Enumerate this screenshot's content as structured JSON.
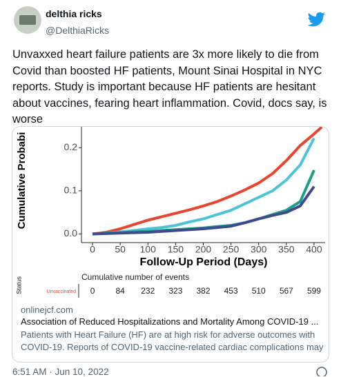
{
  "tweet": {
    "name": "delthia ricks",
    "handle": "@DelthiaRicks",
    "text": "Unvaxxed heart failure patients are 3x more likely to die from Covid than boosted HF patients, Mount Sinai Hospital in NYC reports. Study is important because HF patients are hesitant about vaccines, fearing heart inflammation. Covid, docs say, is worse",
    "time": "6:51 AM · Jun 10, 2022"
  },
  "card": {
    "domain": "onlinejcf.com",
    "title": "Association of Reduced Hospitalizations and Mortality Among COVID-19 ...",
    "description": "Patients with Heart Failure (HF) are at high risk for adverse outcomes with COVID-19. Reports of COVID-19 vaccine-related cardiac complications may"
  },
  "chart_data": {
    "type": "line",
    "y_label": "Cumulative Probabi",
    "x_label": "Follow-Up Period (Days)",
    "x": [
      0,
      25,
      50,
      75,
      100,
      125,
      150,
      175,
      200,
      225,
      250,
      275,
      300,
      325,
      350,
      375,
      400,
      414
    ],
    "series": [
      {
        "color": "#e8452f",
        "values": [
          0,
          0.004,
          0.012,
          0.022,
          0.032,
          0.04,
          0.048,
          0.056,
          0.065,
          0.075,
          0.088,
          0.102,
          0.118,
          0.14,
          0.17,
          0.205,
          0.232,
          0.248
        ]
      },
      {
        "color": "#4ec3d6",
        "values": [
          0,
          0.002,
          0.005,
          0.008,
          0.012,
          0.015,
          0.02,
          0.028,
          0.035,
          0.045,
          0.055,
          0.07,
          0.085,
          0.1,
          0.125,
          0.16,
          0.222,
          null
        ]
      },
      {
        "color": "#1f9e86",
        "values": [
          0,
          0.002,
          0.003,
          0.005,
          0.006,
          0.008,
          0.01,
          0.012,
          0.014,
          0.017,
          0.02,
          0.026,
          0.035,
          0.045,
          0.055,
          0.075,
          0.148,
          null
        ]
      },
      {
        "color": "#3d4a8f",
        "values": [
          0,
          0.001,
          0.002,
          0.003,
          0.004,
          0.006,
          0.008,
          0.01,
          0.012,
          0.015,
          0.018,
          0.026,
          0.035,
          0.043,
          0.05,
          0.065,
          0.11,
          null
        ]
      }
    ],
    "xlim": [
      -20,
      420
    ],
    "ylim": [
      -0.02,
      0.25
    ],
    "xticks": [
      0,
      50,
      100,
      150,
      200,
      250,
      300,
      350,
      400
    ],
    "yticks": [
      {
        "value": 0,
        "label": "0.0"
      },
      0.1,
      0.2
    ],
    "risk_table": {
      "title": "Cumulative number of events",
      "status_label": "Status",
      "row_label": "Unvaccinated",
      "values": [
        0,
        84,
        232,
        323,
        382,
        453,
        510,
        567,
        599
      ]
    }
  }
}
